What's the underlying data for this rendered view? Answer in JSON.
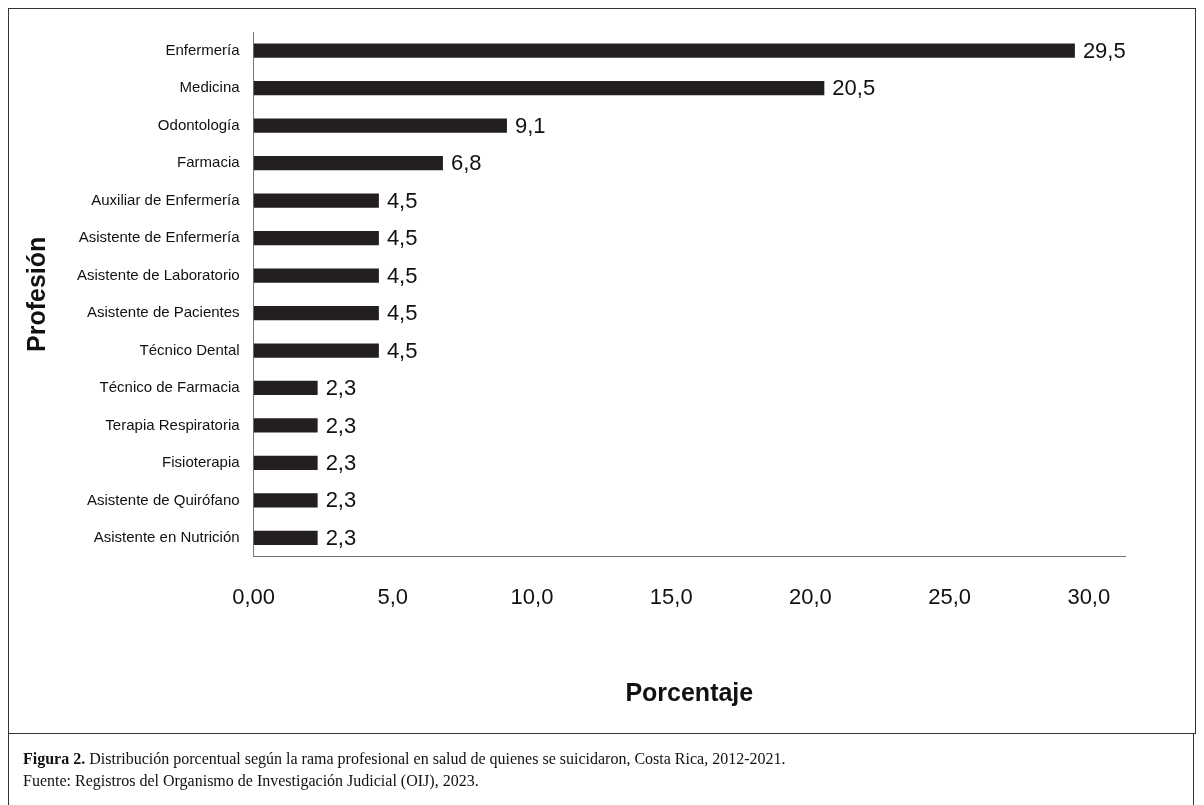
{
  "chart_data": {
    "type": "bar",
    "orientation": "horizontal",
    "categories": [
      "Enfermería",
      "Medicina",
      "Odontología",
      "Farmacia",
      "Auxiliar de Enfermería",
      "Asistente de Enfermería",
      "Asistente de Laboratorio",
      "Asistente de Pacientes",
      "Técnico Dental",
      "Técnico de Farmacia",
      "Terapia Respiratoria",
      "Fisioterapia",
      "Asistente de Quirófano",
      "Asistente en Nutrición"
    ],
    "values": [
      29.5,
      20.5,
      9.1,
      6.8,
      4.5,
      4.5,
      4.5,
      4.5,
      4.5,
      2.3,
      2.3,
      2.3,
      2.3,
      2.3
    ],
    "value_labels": [
      "29,5",
      "20,5",
      "9,1",
      "6,8",
      "4,5",
      "4,5",
      "4,5",
      "4,5",
      "4,5",
      "2,3",
      "2,3",
      "2,3",
      "2,3",
      "2,3"
    ],
    "color": "#231f20",
    "xlim": [
      0,
      31.3
    ],
    "xticks": [
      {
        "value": 0,
        "label": "0,00"
      },
      {
        "value": 5,
        "label": "5,0"
      },
      {
        "value": 10,
        "label": "10,0"
      },
      {
        "value": 15,
        "label": "15,0"
      },
      {
        "value": 20,
        "label": "20,0"
      },
      {
        "value": 25,
        "label": "25,0"
      },
      {
        "value": 30,
        "label": "30,0"
      }
    ],
    "xlabel": "Porcentaje",
    "ylabel": "Profesión",
    "grid": false,
    "legend": false,
    "annotations": [
      "**Figura 2.** Distribución porcentual según la rama profesional en salud de quienes se suicidaron, Costa Rica, 2012-2021.",
      "Fuente: Registros del Organismo de Investigación Judicial (OIJ), 2023."
    ]
  }
}
